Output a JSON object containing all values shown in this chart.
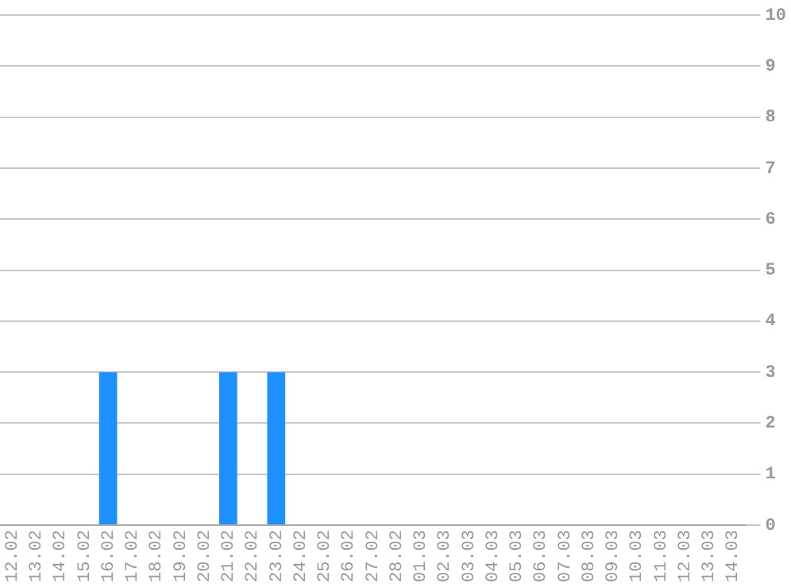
{
  "chart_data": {
    "type": "bar",
    "categories": [
      "12.02",
      "13.02",
      "14.02",
      "15.02",
      "16.02",
      "17.02",
      "18.02",
      "19.02",
      "20.02",
      "21.02",
      "22.02",
      "23.02",
      "24.02",
      "25.02",
      "26.02",
      "27.02",
      "28.02",
      "01.03",
      "02.03",
      "03.03",
      "04.03",
      "05.03",
      "06.03",
      "07.03",
      "08.03",
      "09.03",
      "10.03",
      "11.03",
      "12.03",
      "13.03",
      "14.03"
    ],
    "values": [
      0,
      0,
      0,
      0,
      3,
      0,
      0,
      0,
      0,
      3,
      0,
      3,
      0,
      0,
      0,
      0,
      0,
      0,
      0,
      0,
      0,
      0,
      0,
      0,
      0,
      0,
      0,
      0,
      0,
      0,
      0
    ],
    "color": "#1e90ff",
    "ylim": [
      0,
      10
    ],
    "yticks": [
      0,
      1,
      2,
      3,
      4,
      5,
      6,
      7,
      8,
      9,
      10
    ],
    "grid": "y",
    "legend": false
  }
}
